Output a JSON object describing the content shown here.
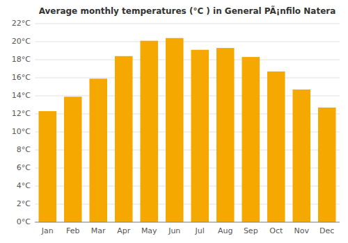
{
  "chart_data": {
    "type": "bar",
    "title": "Average monthly temperatures (°C ) in General PÃ¡nfilo Natera",
    "categories": [
      "Jan",
      "Feb",
      "Mar",
      "Apr",
      "May",
      "Jun",
      "Jul",
      "Aug",
      "Sep",
      "Oct",
      "Nov",
      "Dec"
    ],
    "values": [
      12.3,
      13.9,
      15.9,
      18.4,
      20.1,
      20.4,
      19.1,
      19.3,
      18.3,
      16.7,
      14.7,
      12.7
    ],
    "color": "#F5A800",
    "ylim": [
      0,
      22
    ],
    "yticks": [
      {
        "value": 0,
        "label": "0°C"
      },
      {
        "value": 2,
        "label": "2°C"
      },
      {
        "value": 4,
        "label": "4°C"
      },
      {
        "value": 6,
        "label": "6°C"
      },
      {
        "value": 8,
        "label": "8°C"
      },
      {
        "value": 10,
        "label": "10°C"
      },
      {
        "value": 12,
        "label": "12°C"
      },
      {
        "value": 14,
        "label": "14°C"
      },
      {
        "value": 16,
        "label": "16°C"
      },
      {
        "value": 18,
        "label": "18°C"
      },
      {
        "value": 20,
        "label": "20°C"
      },
      {
        "value": 22,
        "label": "22°C"
      }
    ],
    "grid": true
  }
}
